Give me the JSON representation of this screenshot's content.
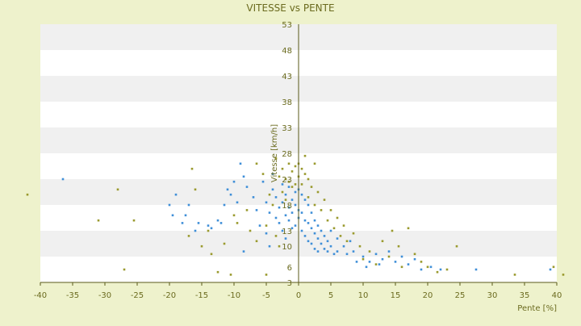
{
  "chart_data": {
    "type": "scatter",
    "title": "VITESSE vs PENTE",
    "xlabel": "Pente [%]",
    "ylabel": "Vitesse [km/h]",
    "xlim": [
      -40,
      40
    ],
    "ylim": [
      3,
      53
    ],
    "x_ticks": [
      -40,
      -35,
      -30,
      -25,
      -20,
      -15,
      -10,
      -5,
      0,
      5,
      10,
      15,
      20,
      25,
      30,
      35,
      40
    ],
    "y_ticks": [
      3,
      8,
      13,
      18,
      23,
      28,
      33,
      38,
      43,
      48,
      53
    ],
    "y_tick_labels_shown": [
      "3",
      "6",
      "10",
      "13",
      "18",
      "23",
      "28",
      "33",
      "38",
      "43",
      "48",
      "53"
    ],
    "grid": "horizontal bands",
    "colors": {
      "page_background": "#eef2cc",
      "plot_band_light": "#ffffff",
      "plot_band_shaded": "#f0f0f0",
      "axis": "#5a5a1a",
      "text": "#6b6b1f",
      "series_blue": "#3f8fd8",
      "series_olive": "#9a9a2e"
    },
    "series": [
      {
        "color": "#3f8fd8",
        "points": [
          [
            -36.5,
            23.0
          ],
          [
            -20.0,
            18.0
          ],
          [
            -19.5,
            16.0
          ],
          [
            -19.0,
            20.0
          ],
          [
            -18.0,
            14.5
          ],
          [
            -17.5,
            16.0
          ],
          [
            -17.0,
            18.0
          ],
          [
            -16.0,
            13.0
          ],
          [
            -15.5,
            14.5
          ],
          [
            -14.0,
            14.0
          ],
          [
            -13.5,
            13.5
          ],
          [
            -12.5,
            15.0
          ],
          [
            -12.0,
            14.5
          ],
          [
            -11.5,
            18.0
          ],
          [
            -11.0,
            21.0
          ],
          [
            -10.5,
            20.0
          ],
          [
            -10.0,
            22.5
          ],
          [
            -9.5,
            18.5
          ],
          [
            -9.0,
            26.0
          ],
          [
            -8.5,
            23.5
          ],
          [
            -8.0,
            21.5
          ],
          [
            -8.5,
            9.0
          ],
          [
            -7.0,
            19.5
          ],
          [
            -6.5,
            17.0
          ],
          [
            -6.0,
            14.0
          ],
          [
            -5.5,
            22.5
          ],
          [
            -5.0,
            18.5
          ],
          [
            -5.0,
            12.5
          ],
          [
            -4.5,
            16.5
          ],
          [
            -4.5,
            10.0
          ],
          [
            -4.0,
            24.0
          ],
          [
            -4.0,
            21.0
          ],
          [
            -3.5,
            19.5
          ],
          [
            -3.5,
            15.5
          ],
          [
            -3.0,
            17.5
          ],
          [
            -3.0,
            14.5
          ],
          [
            -2.5,
            22.0
          ],
          [
            -2.5,
            18.5
          ],
          [
            -2.5,
            13.0
          ],
          [
            -2.0,
            20.0
          ],
          [
            -2.0,
            16.0
          ],
          [
            -2.0,
            11.5
          ],
          [
            -1.5,
            21.5
          ],
          [
            -1.5,
            17.5
          ],
          [
            -1.5,
            15.0
          ],
          [
            -1.0,
            19.0
          ],
          [
            -1.0,
            16.5
          ],
          [
            -1.0,
            13.5
          ],
          [
            -0.5,
            20.5
          ],
          [
            -0.5,
            18.0
          ],
          [
            -0.5,
            14.0
          ],
          [
            0.0,
            21.0
          ],
          [
            0.0,
            17.0
          ],
          [
            0.0,
            15.5
          ],
          [
            0.5,
            20.0
          ],
          [
            0.5,
            16.5
          ],
          [
            0.5,
            13.0
          ],
          [
            1.0,
            19.0
          ],
          [
            1.0,
            15.0
          ],
          [
            1.0,
            12.0
          ],
          [
            1.5,
            18.0
          ],
          [
            1.5,
            14.5
          ],
          [
            1.5,
            11.0
          ],
          [
            2.0,
            16.5
          ],
          [
            2.0,
            13.5
          ],
          [
            2.0,
            10.5
          ],
          [
            2.5,
            15.0
          ],
          [
            2.5,
            12.5
          ],
          [
            2.5,
            9.5
          ],
          [
            3.0,
            14.0
          ],
          [
            3.0,
            11.5
          ],
          [
            3.0,
            9.0
          ],
          [
            3.5,
            13.0
          ],
          [
            3.5,
            10.5
          ],
          [
            4.0,
            12.0
          ],
          [
            4.0,
            9.5
          ],
          [
            4.5,
            11.0
          ],
          [
            4.5,
            9.0
          ],
          [
            5.0,
            13.0
          ],
          [
            5.0,
            10.0
          ],
          [
            5.5,
            8.5
          ],
          [
            6.0,
            11.5
          ],
          [
            6.0,
            9.0
          ],
          [
            7.0,
            10.0
          ],
          [
            7.5,
            8.5
          ],
          [
            8.0,
            11.0
          ],
          [
            8.5,
            9.0
          ],
          [
            9.0,
            7.0
          ],
          [
            10.0,
            8.0
          ],
          [
            10.5,
            6.0
          ],
          [
            11.0,
            7.0
          ],
          [
            12.0,
            8.5
          ],
          [
            12.5,
            6.5
          ],
          [
            13.0,
            7.5
          ],
          [
            14.0,
            9.0
          ],
          [
            15.0,
            7.0
          ],
          [
            16.0,
            8.0
          ],
          [
            17.0,
            6.5
          ],
          [
            18.0,
            7.5
          ],
          [
            19.0,
            5.5
          ],
          [
            20.5,
            6.0
          ],
          [
            22.0,
            5.5
          ],
          [
            27.5,
            5.5
          ],
          [
            39.0,
            5.5
          ]
        ]
      },
      {
        "color": "#9a9a2e",
        "points": [
          [
            -42.0,
            20.0
          ],
          [
            -31.0,
            15.0
          ],
          [
            -28.0,
            21.0
          ],
          [
            -27.0,
            5.5
          ],
          [
            -25.5,
            15.0
          ],
          [
            -17.0,
            12.0
          ],
          [
            -16.5,
            25.0
          ],
          [
            -16.0,
            21.0
          ],
          [
            -15.0,
            10.0
          ],
          [
            -14.0,
            13.0
          ],
          [
            -13.5,
            8.5
          ],
          [
            -12.5,
            5.0
          ],
          [
            -11.5,
            10.5
          ],
          [
            -10.5,
            4.5
          ],
          [
            -10.0,
            16.0
          ],
          [
            -9.5,
            14.5
          ],
          [
            -8.0,
            17.0
          ],
          [
            -7.5,
            13.0
          ],
          [
            -6.5,
            26.0
          ],
          [
            -6.5,
            11.0
          ],
          [
            -5.5,
            24.0
          ],
          [
            -5.0,
            14.0
          ],
          [
            -5.0,
            4.5
          ],
          [
            -4.5,
            20.0
          ],
          [
            -4.0,
            18.0
          ],
          [
            -3.5,
            27.0
          ],
          [
            -3.5,
            12.0
          ],
          [
            -3.0,
            23.5
          ],
          [
            -3.0,
            10.0
          ],
          [
            -2.5,
            25.0
          ],
          [
            -2.5,
            20.5
          ],
          [
            -2.0,
            23.0
          ],
          [
            -2.0,
            19.0
          ],
          [
            -1.5,
            26.0
          ],
          [
            -1.5,
            22.5
          ],
          [
            -1.0,
            24.5
          ],
          [
            -1.0,
            21.5
          ],
          [
            -0.5,
            25.5
          ],
          [
            -0.5,
            22.0
          ],
          [
            0.0,
            26.0
          ],
          [
            0.0,
            23.5
          ],
          [
            0.5,
            25.0
          ],
          [
            0.5,
            22.0
          ],
          [
            1.0,
            27.5
          ],
          [
            1.0,
            24.0
          ],
          [
            1.5,
            23.0
          ],
          [
            1.5,
            19.5
          ],
          [
            2.0,
            21.5
          ],
          [
            2.5,
            26.0
          ],
          [
            2.5,
            18.0
          ],
          [
            3.0,
            20.5
          ],
          [
            3.5,
            17.0
          ],
          [
            4.0,
            19.0
          ],
          [
            4.5,
            15.0
          ],
          [
            5.0,
            17.0
          ],
          [
            5.5,
            13.5
          ],
          [
            6.0,
            15.5
          ],
          [
            6.5,
            12.0
          ],
          [
            7.0,
            14.0
          ],
          [
            7.5,
            11.0
          ],
          [
            8.5,
            12.5
          ],
          [
            9.5,
            10.0
          ],
          [
            10.0,
            7.5
          ],
          [
            11.0,
            9.0
          ],
          [
            12.0,
            6.5
          ],
          [
            13.0,
            11.0
          ],
          [
            14.0,
            8.0
          ],
          [
            14.5,
            13.0
          ],
          [
            15.5,
            10.0
          ],
          [
            16.0,
            6.0
          ],
          [
            17.0,
            13.5
          ],
          [
            18.0,
            8.5
          ],
          [
            19.0,
            7.0
          ],
          [
            20.0,
            6.0
          ],
          [
            21.5,
            5.0
          ],
          [
            23.0,
            5.5
          ],
          [
            24.5,
            10.0
          ],
          [
            33.5,
            4.5
          ],
          [
            39.5,
            6.0
          ],
          [
            41.0,
            4.5
          ]
        ]
      }
    ]
  }
}
